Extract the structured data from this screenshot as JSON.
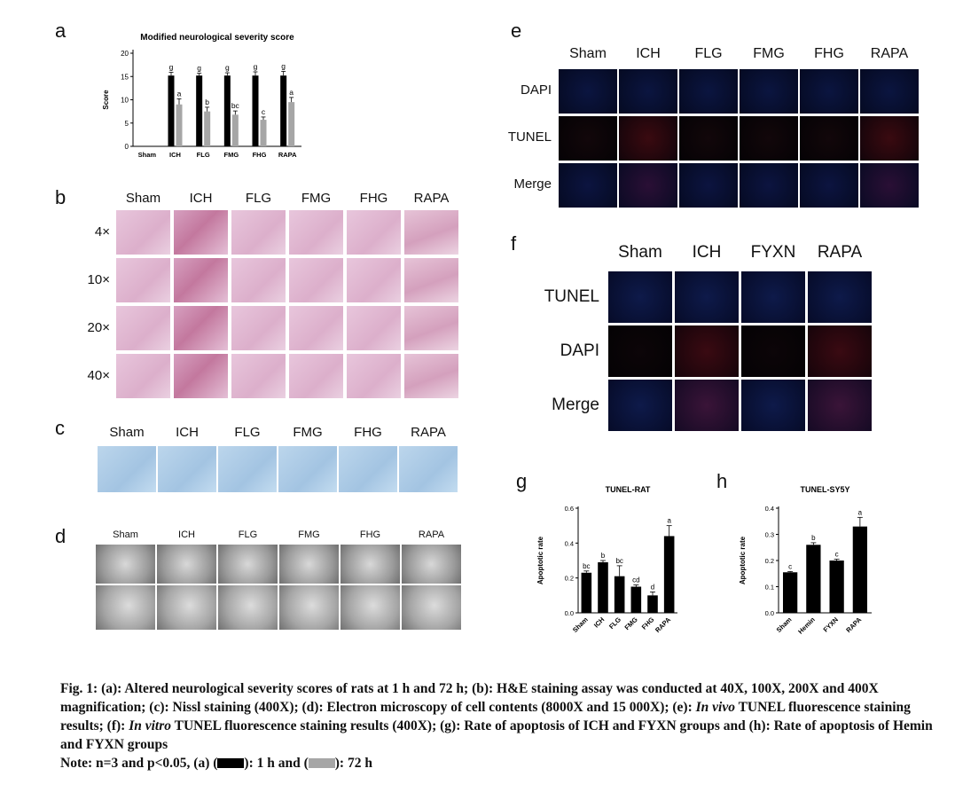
{
  "panels": {
    "a": {
      "letter": "a",
      "chart_data": {
        "type": "bar",
        "title": "Modified neurological severity score",
        "ylabel": "Score",
        "xlabel": "",
        "categories": [
          "Sham",
          "ICH",
          "FLG",
          "FMG",
          "FHG",
          "RAPA"
        ],
        "ylim": [
          0,
          20
        ],
        "yticks": [
          0,
          5,
          10,
          15,
          20
        ],
        "series": [
          {
            "name": "1 h",
            "color": "#000000",
            "values": [
              0,
              15.2,
              15.2,
              15.2,
              15.2,
              15.2
            ],
            "errors": [
              0,
              0.7,
              0.5,
              0.6,
              0.8,
              0.9
            ],
            "letters": [
              "",
              "g",
              "g",
              "g",
              "g",
              "g"
            ]
          },
          {
            "name": "72 h",
            "color": "#a6a6a6",
            "values": [
              0,
              9.0,
              7.5,
              6.8,
              5.7,
              9.5
            ],
            "errors": [
              0,
              1.2,
              0.9,
              0.8,
              0.6,
              1.0
            ],
            "letters": [
              "",
              "a",
              "b",
              "bc",
              "c",
              "a"
            ]
          }
        ],
        "grid": false
      }
    },
    "b": {
      "letter": "b",
      "columns": [
        "Sham",
        "ICH",
        "FLG",
        "FMG",
        "FHG",
        "RAPA"
      ],
      "rows": [
        "4×",
        "10×",
        "20×",
        "40×"
      ]
    },
    "c": {
      "letter": "c",
      "columns": [
        "Sham",
        "ICH",
        "FLG",
        "FMG",
        "FHG",
        "RAPA"
      ]
    },
    "d": {
      "letter": "d",
      "columns": [
        "Sham",
        "ICH",
        "FLG",
        "FMG",
        "FHG",
        "RAPA"
      ]
    },
    "e": {
      "letter": "e",
      "columns": [
        "Sham",
        "ICH",
        "FLG",
        "FMG",
        "FHG",
        "RAPA"
      ],
      "rows": [
        "DAPI",
        "TUNEL",
        "Merge"
      ]
    },
    "f": {
      "letter": "f",
      "columns": [
        "Sham",
        "ICH",
        "FYXN",
        "RAPA"
      ],
      "rows": [
        "TUNEL",
        "DAPI",
        "Merge"
      ]
    },
    "g": {
      "letter": "g",
      "chart_data": {
        "type": "bar",
        "title": "TUNEL-RAT",
        "ylabel": "Apoptotic rate",
        "xlabel": "",
        "categories": [
          "Sham",
          "ICH",
          "FLG",
          "FMG",
          "FHG",
          "RAPA"
        ],
        "ylim": [
          0,
          0.6
        ],
        "yticks": [
          "0.0",
          "0.2",
          "0.4",
          "0.6"
        ],
        "values": [
          0.23,
          0.29,
          0.21,
          0.15,
          0.1,
          0.44
        ],
        "errors": [
          0.01,
          0.01,
          0.06,
          0.01,
          0.02,
          0.06
        ],
        "letters": [
          "bc",
          "b",
          "bc",
          "cd",
          "d",
          "a"
        ],
        "color": "#000000"
      }
    },
    "h": {
      "letter": "h",
      "chart_data": {
        "type": "bar",
        "title": "TUNEL-SY5Y",
        "ylabel": "Apoptotic rate",
        "xlabel": "",
        "categories": [
          "Sham",
          "Hemin",
          "FYXN",
          "RAPA"
        ],
        "ylim": [
          0,
          0.4
        ],
        "yticks": [
          "0.0",
          "0.1",
          "0.2",
          "0.3",
          "0.4"
        ],
        "values": [
          0.155,
          0.26,
          0.2,
          0.33
        ],
        "errors": [
          0.003,
          0.008,
          0.005,
          0.035
        ],
        "letters": [
          "c",
          "b",
          "c",
          "a"
        ],
        "color": "#000000"
      }
    }
  },
  "caption": {
    "fig": "Fig. 1:",
    "p1": " (a): Altered neurological severity scores of rats at 1 h and 72 h; (b): H&E staining assay was conducted at 40X, 100X, 200X and 400X magnification; (c): Nissl staining (400X); (d): Electron microscopy of cell contents (8000X and 15 000X); (e): ",
    "invivo": "In vivo",
    "p2": " TUNEL fluorescence staining results; (f): ",
    "invitro": "In vitro",
    "p3": " TUNEL fluorescence staining results (400X); (g): Rate of apoptosis of ICH and FYXN groups and (h): Rate of apoptosis of Hemin and FYXN groups",
    "note_a": "Note: n=3 and p<0.05, (a) (",
    "note_b": "): 1 h and (",
    "note_c": "): 72 h",
    "swatch1": "#000000",
    "swatch2": "#a6a6a6"
  }
}
